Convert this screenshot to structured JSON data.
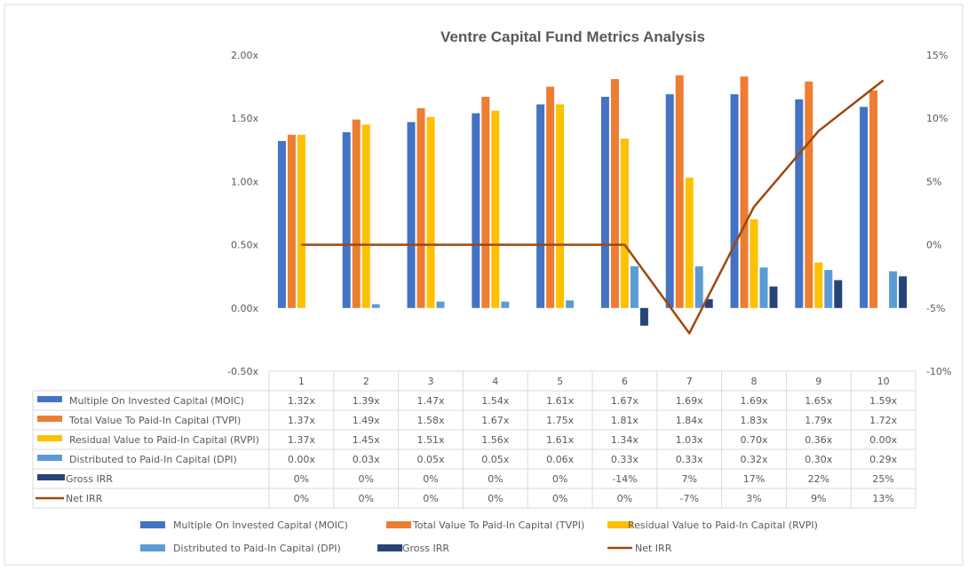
{
  "chart_data": {
    "type": "bar",
    "title": "Ventre Capital Fund Metrics Analysis",
    "categories": [
      "1",
      "2",
      "3",
      "4",
      "5",
      "6",
      "7",
      "8",
      "9",
      "10"
    ],
    "primary_axis": {
      "range": [
        -0.5,
        2.0
      ],
      "ticks": [
        "-0.50x",
        "0.00x",
        "0.50x",
        "1.00x",
        "1.50x",
        "2.00x"
      ]
    },
    "secondary_axis": {
      "range": [
        -10,
        15
      ],
      "ticks": [
        "-10%",
        "-5%",
        "0%",
        "5%",
        "10%",
        "15%"
      ]
    },
    "grid": false,
    "legend_placement": "bottom",
    "series": [
      {
        "name": "Multiple On Invested Capital (MOIC)",
        "kind": "bar",
        "axis": "primary",
        "color": "#4472C4",
        "values": [
          1.32,
          1.39,
          1.47,
          1.54,
          1.61,
          1.67,
          1.69,
          1.69,
          1.65,
          1.59
        ],
        "labels": [
          "1.32x",
          "1.39x",
          "1.47x",
          "1.54x",
          "1.61x",
          "1.67x",
          "1.69x",
          "1.69x",
          "1.65x",
          "1.59x"
        ]
      },
      {
        "name": "Total Value To Paid-In Capital (TVPI)",
        "kind": "bar",
        "axis": "primary",
        "color": "#ED7D31",
        "values": [
          1.37,
          1.49,
          1.58,
          1.67,
          1.75,
          1.81,
          1.84,
          1.83,
          1.79,
          1.72
        ],
        "labels": [
          "1.37x",
          "1.49x",
          "1.58x",
          "1.67x",
          "1.75x",
          "1.81x",
          "1.84x",
          "1.83x",
          "1.79x",
          "1.72x"
        ]
      },
      {
        "name": "Residual Value to Paid-In Capital (RVPI)",
        "kind": "bar",
        "axis": "primary",
        "color": "#FFC000",
        "values": [
          1.37,
          1.45,
          1.51,
          1.56,
          1.61,
          1.34,
          1.03,
          0.7,
          0.36,
          0.0
        ],
        "labels": [
          "1.37x",
          "1.45x",
          "1.51x",
          "1.56x",
          "1.61x",
          "1.34x",
          "1.03x",
          "0.70x",
          "0.36x",
          "0.00x"
        ]
      },
      {
        "name": "Distributed to Paid-In Capital (DPI)",
        "kind": "bar",
        "axis": "primary",
        "color": "#5B9BD5",
        "values": [
          0.0,
          0.03,
          0.05,
          0.05,
          0.06,
          0.33,
          0.33,
          0.32,
          0.3,
          0.29
        ],
        "labels": [
          "0.00x",
          "0.03x",
          "0.05x",
          "0.05x",
          "0.06x",
          "0.33x",
          "0.33x",
          "0.32x",
          "0.30x",
          "0.29x"
        ]
      },
      {
        "name": "Gross IRR",
        "kind": "bar",
        "axis": "primary",
        "color": "#264478",
        "values": [
          0,
          0,
          0,
          0,
          0,
          -0.14,
          0.07,
          0.17,
          0.22,
          0.25
        ],
        "labels": [
          "0%",
          "0%",
          "0%",
          "0%",
          "0%",
          "-14%",
          "7%",
          "17%",
          "22%",
          "25%"
        ]
      },
      {
        "name": "Net IRR",
        "kind": "line",
        "axis": "secondary",
        "color": "#9E480E",
        "values": [
          0,
          0,
          0,
          0,
          0,
          0,
          -7,
          3,
          9,
          13
        ],
        "labels": [
          "0%",
          "0%",
          "0%",
          "0%",
          "0%",
          "0%",
          "-7%",
          "3%",
          "9%",
          "13%"
        ]
      }
    ]
  }
}
